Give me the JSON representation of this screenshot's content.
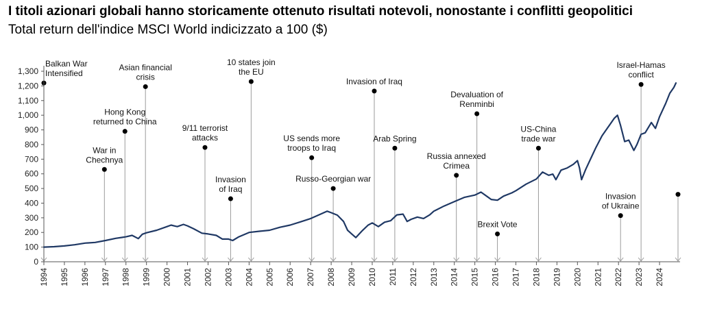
{
  "header": {
    "title": "I titoli azionari globali hanno storicamente ottenuto risultati notevoli, nonostante i conflitti geopolitici",
    "subtitle": "Total return dell'indice MSCI World indicizzato a 100 ($)"
  },
  "chart_data": {
    "type": "line",
    "title": "I titoli azionari globali hanno storicamente ottenuto risultati notevoli, nonostante i conflitti geopolitici",
    "subtitle": "Total return dell'indice MSCI World indicizzato a 100 ($)",
    "xlabel": "",
    "ylabel": "",
    "xlim": [
      1994,
      2025
    ],
    "ylim": [
      0,
      1300
    ],
    "yticks": [
      0,
      100,
      200,
      300,
      400,
      500,
      600,
      700,
      800,
      900,
      1000,
      1100,
      1200,
      1300
    ],
    "ytick_labels": [
      "0",
      "100",
      "200",
      "300",
      "400",
      "500",
      "600",
      "700",
      "800",
      "900",
      "1,000",
      "1,100",
      "1,200",
      "1,300"
    ],
    "xticks": [
      1994,
      1995,
      1996,
      1997,
      1998,
      1999,
      2000,
      2001,
      2002,
      2003,
      2004,
      2005,
      2006,
      2007,
      2008,
      2009,
      2010,
      2011,
      2012,
      2013,
      2014,
      2015,
      2016,
      2017,
      2018,
      2019,
      2020,
      2021,
      2022,
      2023,
      2024
    ],
    "xtick_labels": [
      "1994",
      "1995",
      "1996",
      "1997",
      "1998",
      "1999",
      "2000",
      "2001",
      "2002",
      "2003",
      "2004",
      "2005",
      "2006",
      "2007",
      "2008",
      "2009",
      "2010",
      "2011",
      "2012",
      "2013",
      "2014",
      "2015",
      "2016",
      "2017",
      "2018",
      "2019",
      "2020",
      "2021",
      "2022",
      "2023",
      "2024"
    ],
    "grid": false,
    "colors": {
      "line": "#1f3864",
      "annotation_line": "#9a9a9a",
      "dot": "#000000"
    },
    "series": [
      {
        "x": [
          1994.0,
          1994.5,
          1995.0,
          1995.5,
          1996.0,
          1996.5,
          1997.0,
          1997.5,
          1997.8,
          1998.0,
          1998.3,
          1998.6,
          1998.8,
          1999.0,
          1999.5,
          2000.0,
          2000.2,
          2000.5,
          2000.8,
          2001.0,
          2001.3,
          2001.7,
          2002.0,
          2002.4,
          2002.7,
          2003.0,
          2003.2,
          2003.5,
          2004.0,
          2004.5,
          2005.0,
          2005.5,
          2006.0,
          2006.5,
          2007.0,
          2007.4,
          2007.8,
          2008.0,
          2008.3,
          2008.6,
          2008.8,
          2009.0,
          2009.2,
          2009.5,
          2009.8,
          2010.0,
          2010.3,
          2010.6,
          2010.9,
          2011.2,
          2011.5,
          2011.7,
          2011.9,
          2012.2,
          2012.5,
          2012.8,
          2013.0,
          2013.5,
          2014.0,
          2014.5,
          2015.0,
          2015.3,
          2015.6,
          2015.8,
          2016.1,
          2016.4,
          2016.8,
          2017.0,
          2017.5,
          2018.0,
          2018.3,
          2018.6,
          2018.8,
          2018.95,
          2019.2,
          2019.5,
          2019.8,
          2020.0,
          2020.1,
          2020.2,
          2020.4,
          2020.7,
          2020.9,
          2021.2,
          2021.5,
          2021.8,
          2021.95,
          2022.1,
          2022.3,
          2022.5,
          2022.75,
          2022.9,
          2023.1,
          2023.3,
          2023.6,
          2023.8,
          2024.0,
          2024.3,
          2024.5,
          2024.7,
          2024.8
        ],
        "values": [
          100,
          103,
          108,
          116,
          127,
          132,
          145,
          160,
          166,
          170,
          180,
          158,
          188,
          198,
          215,
          240,
          250,
          240,
          255,
          245,
          225,
          195,
          190,
          180,
          155,
          155,
          145,
          170,
          200,
          208,
          215,
          235,
          250,
          272,
          295,
          320,
          345,
          335,
          318,
          275,
          215,
          190,
          165,
          210,
          250,
          265,
          240,
          270,
          280,
          320,
          325,
          275,
          290,
          305,
          295,
          320,
          345,
          380,
          410,
          440,
          455,
          475,
          445,
          425,
          420,
          448,
          470,
          485,
          530,
          565,
          612,
          590,
          598,
          560,
          625,
          640,
          665,
          690,
          640,
          560,
          630,
          720,
          780,
          860,
          920,
          980,
          1000,
          930,
          820,
          830,
          760,
          800,
          870,
          880,
          950,
          910,
          990,
          1080,
          1150,
          1190,
          1220
        ]
      }
    ],
    "annotations": [
      {
        "label": "Balkan War\nIntensified",
        "x": 1994.0,
        "dot_y": 1220
      },
      {
        "label": "War in\nChechnya",
        "x": 1996.95,
        "dot_y": 630
      },
      {
        "label": "Hong Kong\nreturned to China",
        "x": 1997.95,
        "dot_y": 890
      },
      {
        "label": "Asian financial\ncrisis",
        "x": 1998.95,
        "dot_y": 1195
      },
      {
        "label": "9/11 terrorist\nattacks",
        "x": 2001.85,
        "dot_y": 780
      },
      {
        "label": "Invasion\nof Iraq",
        "x": 2003.1,
        "dot_y": 430
      },
      {
        "label": "10 states join\nthe EU",
        "x": 2004.1,
        "dot_y": 1230
      },
      {
        "label": "US sends more\ntroops to Iraq",
        "x": 2007.05,
        "dot_y": 710
      },
      {
        "label": "Russo-Georgian war",
        "x": 2008.1,
        "dot_y": 500
      },
      {
        "label": "Invasion of Iraq",
        "x": 2010.1,
        "dot_y": 1165
      },
      {
        "label": "Arab Spring",
        "x": 2011.1,
        "dot_y": 775
      },
      {
        "label": "Russia annexed\nCrimea",
        "x": 2014.1,
        "dot_y": 590
      },
      {
        "label": "Devaluation of\nRenminbi",
        "x": 2015.1,
        "dot_y": 1010
      },
      {
        "label": "Brexit Vote",
        "x": 2016.1,
        "dot_y": 190
      },
      {
        "label": "US-China\ntrade war",
        "x": 2018.1,
        "dot_y": 775
      },
      {
        "label": "Invasion\nof Ukraine",
        "x": 2022.1,
        "dot_y": 315
      },
      {
        "label": "Israel-Hamas\nconflict",
        "x": 2023.1,
        "dot_y": 1210
      },
      {
        "label": "",
        "x": 2024.9,
        "dot_y": 460
      }
    ]
  }
}
